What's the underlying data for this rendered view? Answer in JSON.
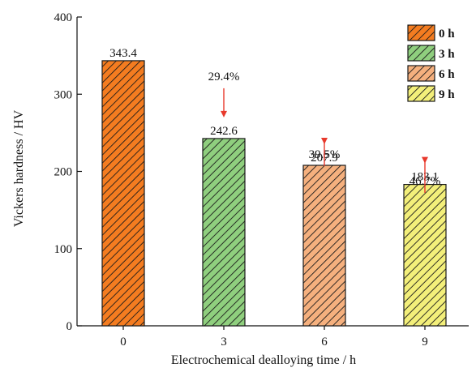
{
  "chart_data": {
    "type": "bar",
    "categories": [
      "0",
      "3",
      "6",
      "9"
    ],
    "values": [
      343.4,
      242.6,
      207.9,
      183.1
    ],
    "value_labels": [
      "343.4",
      "242.6",
      "207.9",
      "183.1"
    ],
    "xlabel": "Electrochemical dealloying time / h",
    "ylabel": "Vickers hardness / HV",
    "ylim": [
      0,
      400
    ],
    "yticks": [
      "0",
      "100",
      "200",
      "300",
      "400"
    ],
    "grid": false,
    "legend_position": "top-right",
    "legend": [
      "0 h",
      "3 h",
      "6 h",
      "9 h"
    ],
    "bar_colors": [
      "#f47c20",
      "#8fcf7e",
      "#f5b07e",
      "#f3ef7a"
    ],
    "hatch": "diagonal",
    "annotations": [
      {
        "category_index": 1,
        "text": "29.4%",
        "type": "down-arrow"
      },
      {
        "category_index": 2,
        "text": "39.5%",
        "type": "down-arrow"
      },
      {
        "category_index": 3,
        "text": "46.7%",
        "type": "down-arrow"
      }
    ],
    "arrow_color": "#e8392c"
  }
}
